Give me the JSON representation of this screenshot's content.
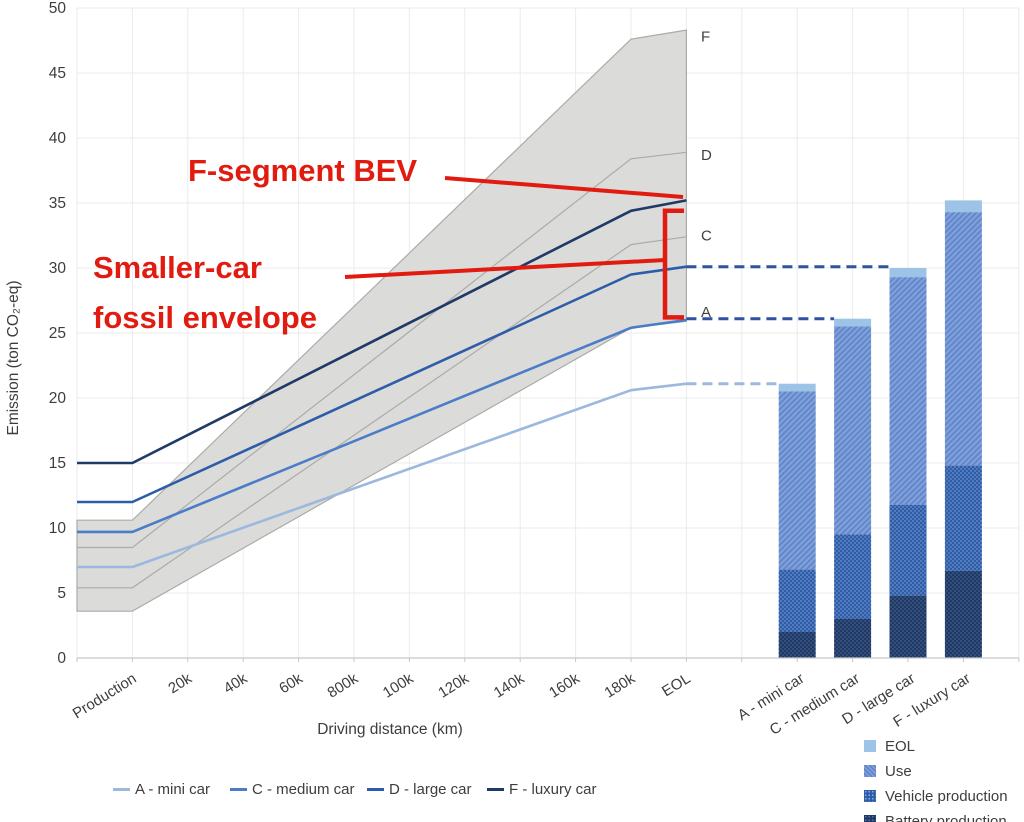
{
  "chart_data": {
    "type": "line+stacked-bar",
    "ylabel": "Emission (ton CO₂-eq)",
    "xlabel": "Driving distance (km)",
    "ylim": [
      0,
      50
    ],
    "yticks": [
      0,
      5,
      10,
      15,
      20,
      25,
      30,
      35,
      40,
      45,
      50
    ],
    "x_categories": [
      "Production",
      "20k",
      "40k",
      "60k",
      "800k",
      "100k",
      "120k",
      "140k",
      "160k",
      "180k",
      "EOL"
    ],
    "bev_lines": [
      {
        "name": "A - mini car",
        "color": "#9db8de",
        "production": 7.0,
        "at_180k": 20.6,
        "eol": 21.1
      },
      {
        "name": "C - medium car",
        "color": "#4a7cc7",
        "production": 9.7,
        "at_180k": 25.4,
        "eol": 26.0
      },
      {
        "name": "D - large car",
        "color": "#2d5da8",
        "production": 12.0,
        "at_180k": 29.5,
        "eol": 30.1
      },
      {
        "name": "F - luxury car",
        "color": "#1f3a66",
        "production": 15.0,
        "at_180k": 34.4,
        "eol": 35.2
      }
    ],
    "fossil_envelope": {
      "fill": "#dbdbd9",
      "line_color": "#ababa8",
      "lines": [
        {
          "name": "A",
          "production": 3.6,
          "at_180k": 25.4,
          "eol": 25.9
        },
        {
          "name": "C",
          "production": 5.4,
          "at_180k": 31.8,
          "eol": 32.4
        },
        {
          "name": "D",
          "production": 8.5,
          "at_180k": 38.4,
          "eol": 38.9
        },
        {
          "name": "F",
          "production": 10.6,
          "at_180k": 47.6,
          "eol": 48.3
        }
      ]
    },
    "right_edge_labels": [
      {
        "text": "F",
        "value": 47.8
      },
      {
        "text": "D",
        "value": 38.7
      },
      {
        "text": "C",
        "value": 32.5
      },
      {
        "text": "A",
        "value": 26.6
      }
    ],
    "bars": {
      "stack_order": [
        "battery_production",
        "vehicle_production",
        "use",
        "eol"
      ],
      "series": [
        {
          "category": "A - mini car",
          "battery_production": 2.0,
          "vehicle_production": 4.8,
          "use": 13.7,
          "eol": 0.6,
          "total": 21.1
        },
        {
          "category": "C - medium car",
          "battery_production": 3.0,
          "vehicle_production": 6.5,
          "use": 16.0,
          "eol": 0.6,
          "total": 26.1
        },
        {
          "category": "D - large car",
          "battery_production": 4.8,
          "vehicle_production": 7.0,
          "use": 17.5,
          "eol": 0.7,
          "total": 30.0
        },
        {
          "category": "F - luxury car",
          "battery_production": 6.7,
          "vehicle_production": 8.1,
          "use": 19.5,
          "eol": 0.9,
          "total": 35.2
        }
      ],
      "colors": {
        "eol": "#9dc3e6",
        "use_base": "#7f9fd9",
        "use_stripe": "#5d82c9",
        "vehicle_base": "#2e5ca6",
        "vehicle_dot": "#86abe0",
        "battery_base": "#1f3864",
        "battery_dot": "#52719f"
      }
    },
    "connectors": [
      {
        "value": 21.1,
        "to_bar": 0,
        "style": "light",
        "color": "#9db8de"
      },
      {
        "value": 26.1,
        "to_bar": 1,
        "style": "dark",
        "color": "#2d54a0"
      },
      {
        "value": 30.1,
        "to_bar": 2,
        "style": "dark",
        "color": "#2d54a0"
      }
    ],
    "annotations": {
      "color": "#e11b10",
      "f_segment_label": "F-segment BEV",
      "envelope_label_line1": "Smaller-car",
      "envelope_label_line2": "fossil envelope",
      "bracket": {
        "top_value": 34.4,
        "bottom_value": 26.2
      }
    },
    "bar_legend": [
      {
        "label": "EOL",
        "swatch": "eol"
      },
      {
        "label": "Use",
        "swatch": "use"
      },
      {
        "label": "Vehicle production",
        "swatch": "vehicle"
      },
      {
        "label": "Battery production",
        "swatch": "battery"
      }
    ]
  }
}
